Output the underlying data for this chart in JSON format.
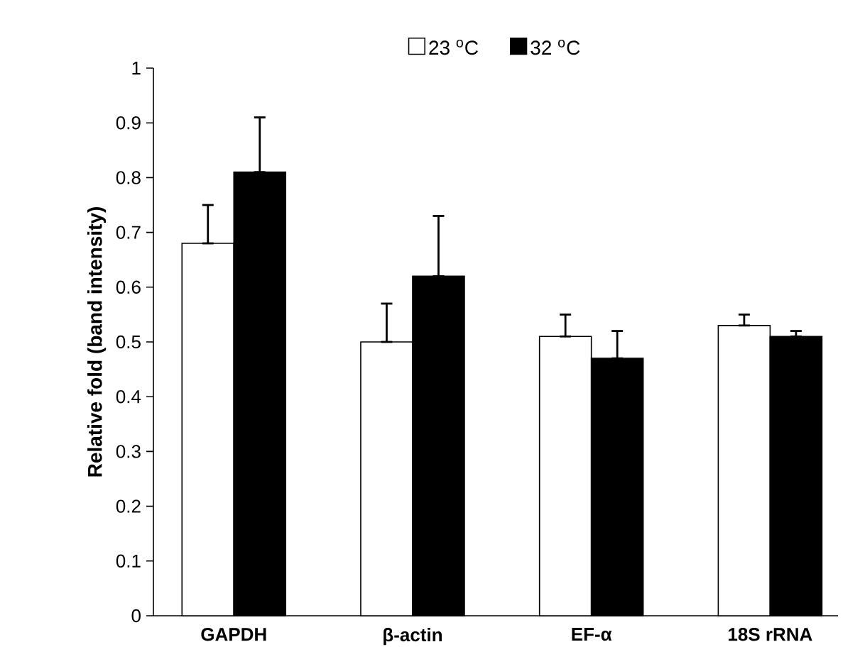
{
  "chart_data": {
    "type": "bar",
    "ylabel": "Relative fold (band intensity)",
    "categories": [
      "GAPDH",
      "β-actin",
      "EF-α",
      "18S rRNA"
    ],
    "series": [
      {
        "name": "23 $^{o}$C",
        "color": "#ffffff",
        "values": [
          0.68,
          0.5,
          0.51,
          0.53
        ],
        "errors": [
          [
            0.68,
            0.75
          ],
          [
            0.5,
            0.57
          ],
          [
            0.51,
            0.55
          ],
          [
            0.53,
            0.55
          ]
        ]
      },
      {
        "name": "32 $^{o}$C",
        "color": "#000000",
        "values": [
          0.81,
          0.62,
          0.47,
          0.51
        ],
        "errors": [
          [
            0.81,
            0.91
          ],
          [
            0.62,
            0.73
          ],
          [
            0.47,
            0.52
          ],
          [
            0.51,
            0.52
          ]
        ]
      }
    ],
    "ylim": [
      0,
      1
    ],
    "yticks": [
      0,
      0.1,
      0.2,
      0.3,
      0.4,
      0.5,
      0.6,
      0.7,
      0.8,
      0.9,
      1
    ],
    "legend": "top"
  }
}
